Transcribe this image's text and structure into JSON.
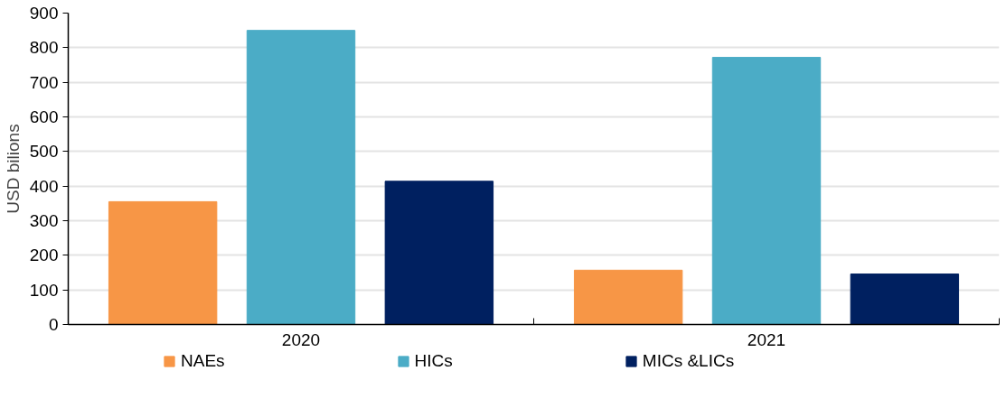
{
  "chart_data": {
    "type": "bar",
    "ylabel": "USD bilions",
    "categories": [
      "2020",
      "2021"
    ],
    "series": [
      {
        "name": "NAEs",
        "color": "#f79646",
        "values": [
          355,
          157
        ]
      },
      {
        "name": "HICs",
        "color": "#4bacc6",
        "values": [
          850,
          772
        ]
      },
      {
        "name": "MICs &LICs",
        "color": "#002060",
        "values": [
          414,
          146
        ]
      }
    ],
    "ylim": [
      0,
      900
    ],
    "yticks": [
      0,
      100,
      200,
      300,
      400,
      500,
      600,
      700,
      800,
      900
    ],
    "grid": "y",
    "legend": "bottom"
  }
}
